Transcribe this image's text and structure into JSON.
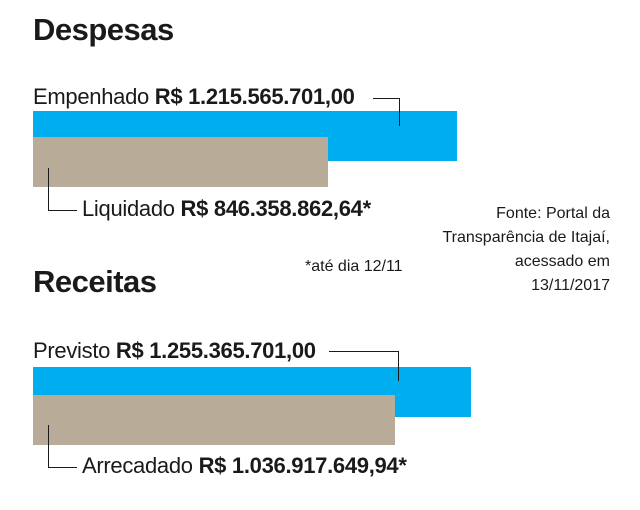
{
  "colors": {
    "primary_bar": "#00aeef",
    "secondary_bar": "#b8ab98",
    "text": "#1a1a1a"
  },
  "chart_data": [
    {
      "type": "bar",
      "title": "Despesas",
      "unit": "R$",
      "bars": [
        {
          "name": "Empenhado",
          "label": "R$ 1.215.565.701,00",
          "value": 1215565701.0,
          "color": "#00aeef"
        },
        {
          "name": "Liquidado",
          "label": "R$ 846.358.862,64*",
          "value": 846358862.64,
          "color": "#b8ab98"
        }
      ]
    },
    {
      "type": "bar",
      "title": "Receitas",
      "unit": "R$",
      "bars": [
        {
          "name": "Previsto",
          "label": "R$ 1.255.365.701,00",
          "value": 1255365701.0,
          "color": "#00aeef"
        },
        {
          "name": "Arrecadado",
          "label": "R$ 1.036.917.649,94*",
          "value": 1036917649.94,
          "color": "#b8ab98"
        }
      ]
    }
  ],
  "footnote": "*até dia 12/11",
  "source": "Fonte: Portal da Transparência de Itajaí, acessado em 13/11/2017"
}
